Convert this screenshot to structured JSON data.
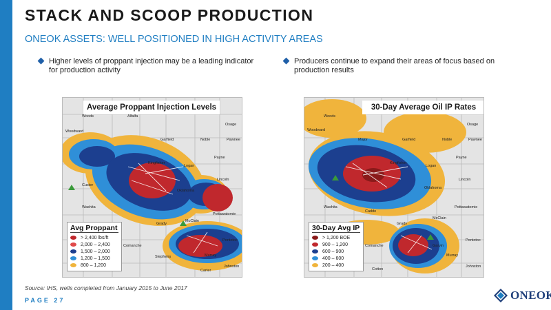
{
  "header": {
    "title": "STACK AND SCOOP PRODUCTION",
    "subtitle": "ONEOK ASSETS: WELL POSITIONED IN HIGH ACTIVITY AREAS"
  },
  "bullets": [
    "Higher levels of proppant injection may be a leading indicator for production activity",
    "Producers continue to expand their areas of focus based on production results"
  ],
  "maps": [
    {
      "title": "Average Proppant Injection Levels",
      "legend_title": "Avg Proppant",
      "legend": [
        {
          "label": "> 2,400 lbs/ft",
          "color": "#c0282d"
        },
        {
          "label": "2,000 – 2,400",
          "color": "#e04a4a"
        },
        {
          "label": "1,500 – 2,000",
          "color": "#1c3f8f"
        },
        {
          "label": "1,200 – 1,500",
          "color": "#2f8fd8"
        },
        {
          "label": "800 – 1,200",
          "color": "#f0b43c"
        }
      ],
      "counties": [
        {
          "name": "Woods"
        },
        {
          "name": "Alfalfa"
        },
        {
          "name": "Woodward"
        },
        {
          "name": "Garfield"
        },
        {
          "name": "Noble"
        },
        {
          "name": "Osage"
        },
        {
          "name": "Pawnee"
        },
        {
          "name": "Payne"
        },
        {
          "name": "Kingfisher"
        },
        {
          "name": "Logan"
        },
        {
          "name": "Lincoln"
        },
        {
          "name": "Custer"
        },
        {
          "name": "Oklahoma"
        },
        {
          "name": "Washita"
        },
        {
          "name": "Pottawatomie"
        },
        {
          "name": "McClain"
        },
        {
          "name": "Grady"
        },
        {
          "name": "Pontotoc"
        },
        {
          "name": "Stephens"
        },
        {
          "name": "Murray"
        },
        {
          "name": "Johnston"
        },
        {
          "name": "Carter"
        },
        {
          "name": "Comanche"
        }
      ]
    },
    {
      "title": "30-Day Average Oil IP Rates",
      "legend_title": "30-Day Avg IP",
      "legend": [
        {
          "label": "> 1,200 BOE",
          "color": "#8a1a1a"
        },
        {
          "label": "900 – 1,200",
          "color": "#c0282d"
        },
        {
          "label": "600 –   900",
          "color": "#1c3f8f"
        },
        {
          "label": "400 –   600",
          "color": "#2f8fd8"
        },
        {
          "label": "200 –   400",
          "color": "#f0b43c"
        }
      ],
      "counties": [
        {
          "name": "Woods"
        },
        {
          "name": "Woodward"
        },
        {
          "name": "Major"
        },
        {
          "name": "Garfield"
        },
        {
          "name": "Noble"
        },
        {
          "name": "Osage"
        },
        {
          "name": "Pawnee"
        },
        {
          "name": "Payne"
        },
        {
          "name": "Kingfisher"
        },
        {
          "name": "Logan"
        },
        {
          "name": "Lincoln"
        },
        {
          "name": "Oklahoma"
        },
        {
          "name": "Washita"
        },
        {
          "name": "Caddo"
        },
        {
          "name": "Pottawatomie"
        },
        {
          "name": "McClain"
        },
        {
          "name": "Grady"
        },
        {
          "name": "Pontotoc"
        },
        {
          "name": "Garvin"
        },
        {
          "name": "Murray"
        },
        {
          "name": "Johnston"
        },
        {
          "name": "Cotton"
        },
        {
          "name": "Comanche"
        }
      ]
    }
  ],
  "footer": {
    "source": "Source: IHS, wells completed from January 2015 to June 2017",
    "page": "PAGE 27",
    "logo_text": "ONEOK"
  },
  "colors": {
    "accent": "#1f7ec2",
    "red": "#c0282d",
    "darkblue": "#1c3f8f",
    "blue": "#2f8fd8",
    "yellow": "#f0b43c",
    "grey": "#e4e4e4"
  }
}
